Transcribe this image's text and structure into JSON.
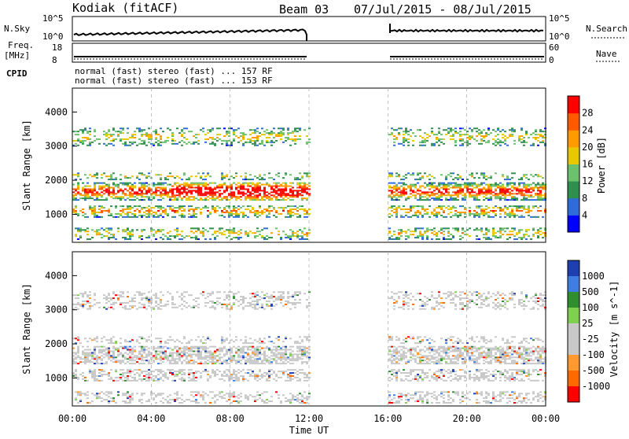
{
  "header": {
    "site": "Kodiak (fitACF)",
    "beam": "Beam 03",
    "date_range": "07/Jul/2015 - 08/Jul/2015"
  },
  "nsky_panel": {
    "left_label": "N.Sky",
    "right_label": "N.Search",
    "left_ticks": [
      "10^5",
      "10^0"
    ],
    "right_ticks": [
      "10^5",
      "10^0"
    ]
  },
  "freq_panel": {
    "left_label_line1": "Freq.",
    "left_label_line2": "[MHz]",
    "right_label": "Nave",
    "left_ticks": [
      "18",
      "8"
    ],
    "right_ticks": [
      "60",
      "0"
    ]
  },
  "cpid": {
    "label": "CPID",
    "row1": "normal (fast) stereo (fast) ... 157 RF",
    "row2": "normal (fast) stereo (fast) ... 153 RF"
  },
  "colors": {
    "power_scale": [
      "#0000ff",
      "#2f6bd9",
      "#2f8f4f",
      "#6cc16c",
      "#e8c800",
      "#ff9a00",
      "#ff5a00",
      "#ff0000"
    ],
    "velocity_scale": [
      "#1e3fb0",
      "#3f7de0",
      "#2f8f2f",
      "#7fd04f",
      "#c8c8c8",
      "#c8c8c8",
      "#ff9a30",
      "#ff6a00",
      "#ff0000"
    ]
  },
  "chart_data": [
    {
      "type": "heatmap",
      "title": "",
      "xlabel": "",
      "ylabel": "Slant Range [km]",
      "x_ticks": [
        "00:00",
        "04:00",
        "08:00",
        "12:00",
        "16:00",
        "20:00",
        "00:00"
      ],
      "y_ticks": [
        "1000",
        "2000",
        "3000",
        "4000"
      ],
      "ylim": [
        180,
        4700
      ],
      "colorbar": {
        "label": "Power [dB]",
        "ticks": [
          "4",
          "8",
          "12",
          "16",
          "20",
          "24",
          "28"
        ]
      },
      "data_gap": [
        "12:00",
        "16:00"
      ]
    },
    {
      "type": "heatmap",
      "title": "",
      "xlabel": "Time UT",
      "ylabel": "Slant Range [km]",
      "x_ticks": [
        "00:00",
        "04:00",
        "08:00",
        "12:00",
        "16:00",
        "20:00",
        "00:00"
      ],
      "y_ticks": [
        "1000",
        "2000",
        "3000",
        "4000"
      ],
      "ylim": [
        180,
        4700
      ],
      "colorbar": {
        "label": "Velocity [m s^-1]",
        "ticks": [
          "1000",
          "500",
          "100",
          "25",
          "-25",
          "-100",
          "-500",
          "-1000"
        ]
      },
      "data_gap": [
        "12:00",
        "16:00"
      ]
    }
  ]
}
